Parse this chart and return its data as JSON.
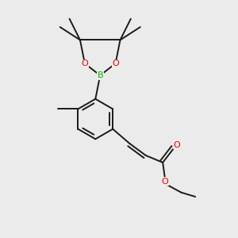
{
  "bg_color": "#ebebeb",
  "bond_color": "#1a1a1a",
  "O_color": "#ee0000",
  "B_color": "#00bb00",
  "line_width": 1.4,
  "figsize": [
    3.0,
    3.0
  ],
  "dpi": 100,
  "xlim": [
    0,
    10
  ],
  "ylim": [
    0,
    10
  ]
}
